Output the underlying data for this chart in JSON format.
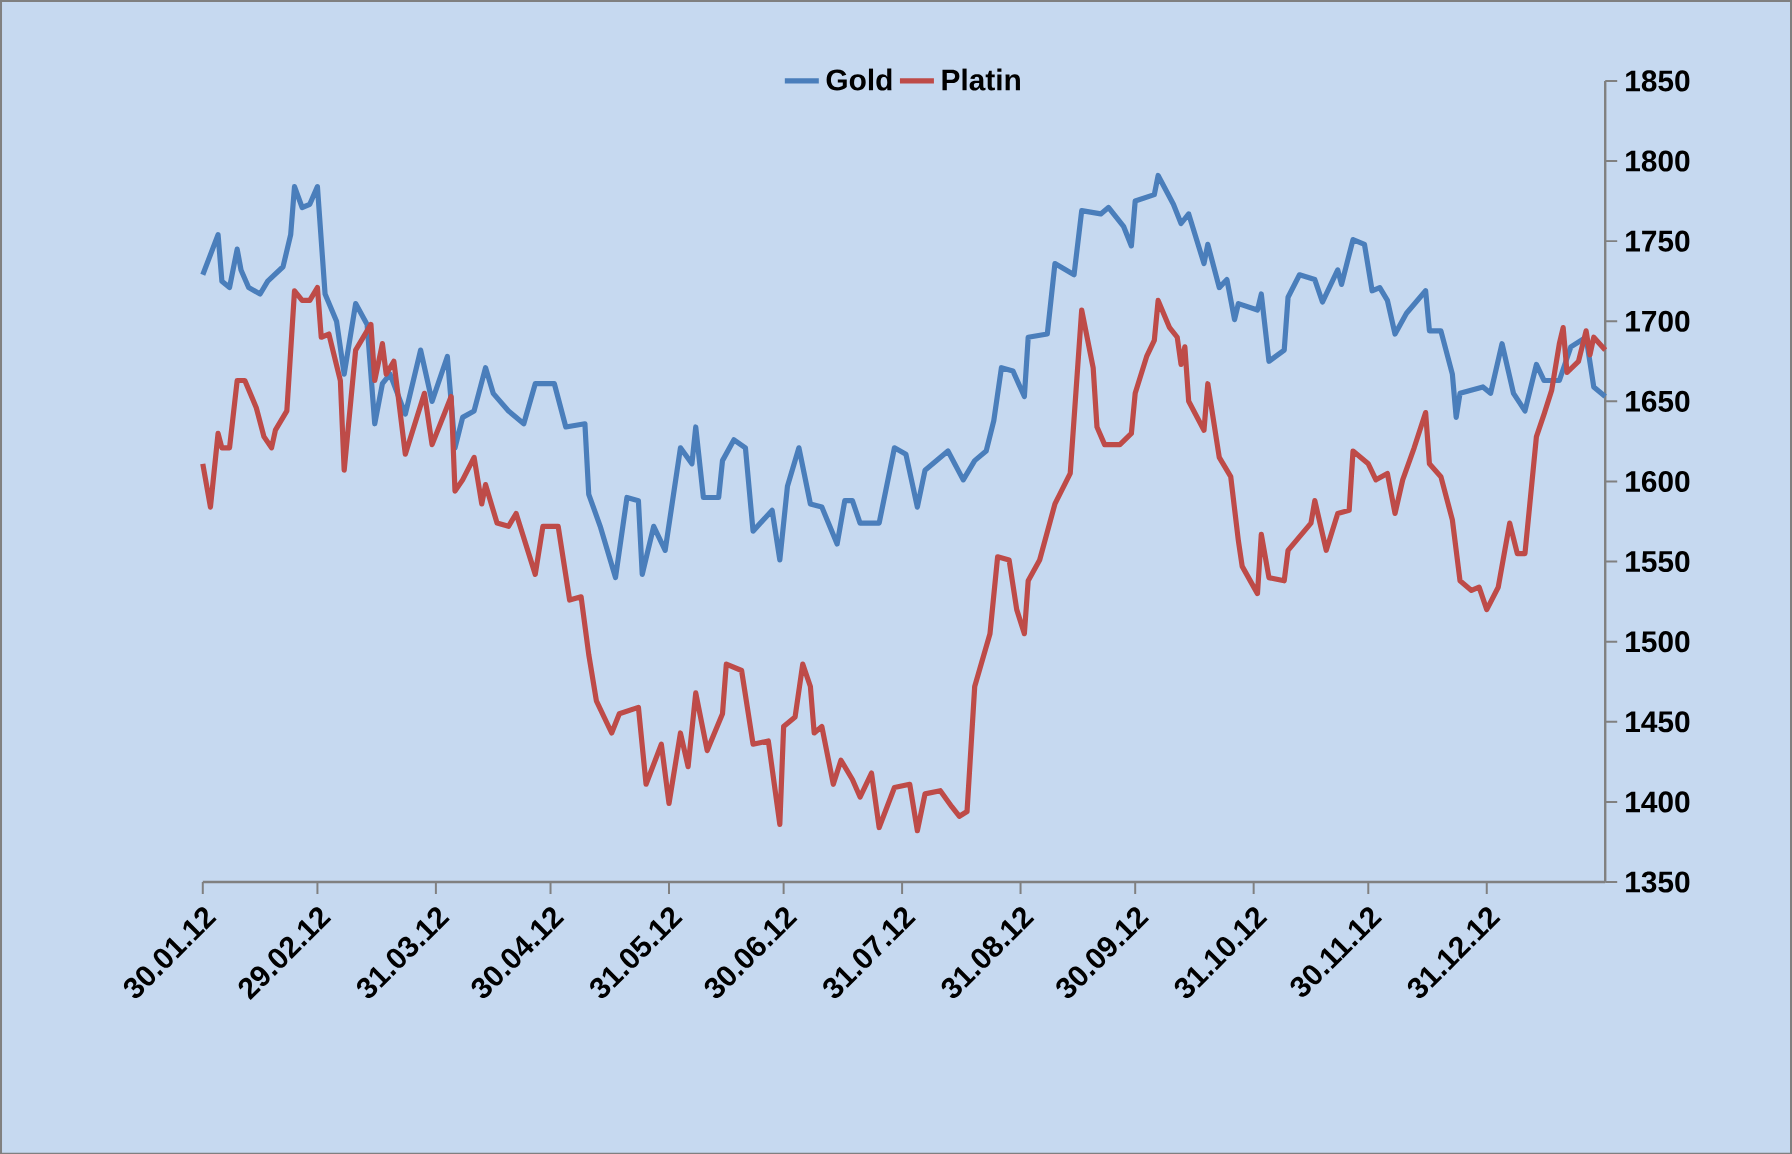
{
  "chart_data": {
    "type": "line",
    "xlim": [
      "2012-01-30",
      "2013-01-31"
    ],
    "ylim": [
      1350,
      1850
    ],
    "xticks": [
      {
        "value": "2012-01-30",
        "label": "30.01.12"
      },
      {
        "value": "2012-02-29",
        "label": "29.02.12"
      },
      {
        "value": "2012-03-31",
        "label": "31.03.12"
      },
      {
        "value": "2012-04-30",
        "label": "30.04.12"
      },
      {
        "value": "2012-05-31",
        "label": "31.05.12"
      },
      {
        "value": "2012-06-30",
        "label": "30.06.12"
      },
      {
        "value": "2012-07-31",
        "label": "31.07.12"
      },
      {
        "value": "2012-08-31",
        "label": "31.08.12"
      },
      {
        "value": "2012-09-30",
        "label": "30.09.12"
      },
      {
        "value": "2012-10-31",
        "label": "31.10.12"
      },
      {
        "value": "2012-11-30",
        "label": "30.11.12"
      },
      {
        "value": "2012-12-31",
        "label": "31.12.12"
      }
    ],
    "yticks": [
      1350,
      1400,
      1450,
      1500,
      1550,
      1600,
      1650,
      1700,
      1750,
      1800,
      1850
    ],
    "legend": "top",
    "grid": false,
    "series": [
      {
        "name": "Gold",
        "color": "#4a7ebb",
        "x": [
          "2012-01-30",
          "2012-02-03",
          "2012-02-04",
          "2012-02-06",
          "2012-02-08",
          "2012-02-09",
          "2012-02-11",
          "2012-02-14",
          "2012-02-16",
          "2012-02-20",
          "2012-02-22",
          "2012-02-23",
          "2012-02-25",
          "2012-02-27",
          "2012-02-29",
          "2012-03-02",
          "2012-03-05",
          "2012-03-07",
          "2012-03-10",
          "2012-03-13",
          "2012-03-15",
          "2012-03-17",
          "2012-03-19",
          "2012-03-23",
          "2012-03-27",
          "2012-03-30",
          "2012-04-03",
          "2012-04-05",
          "2012-04-07",
          "2012-04-10",
          "2012-04-13",
          "2012-04-15",
          "2012-04-19",
          "2012-04-23",
          "2012-04-26",
          "2012-05-01",
          "2012-05-04",
          "2012-05-09",
          "2012-05-10",
          "2012-05-13",
          "2012-05-17",
          "2012-05-20",
          "2012-05-23",
          "2012-05-24",
          "2012-05-27",
          "2012-05-30",
          "2012-06-03",
          "2012-06-06",
          "2012-06-07",
          "2012-06-09",
          "2012-06-13",
          "2012-06-14",
          "2012-06-17",
          "2012-06-20",
          "2012-06-22",
          "2012-06-27",
          "2012-06-29",
          "2012-07-01",
          "2012-07-04",
          "2012-07-07",
          "2012-07-10",
          "2012-07-14",
          "2012-07-16",
          "2012-07-18",
          "2012-07-20",
          "2012-07-25",
          "2012-07-29",
          "2012-08-01",
          "2012-08-04",
          "2012-08-06",
          "2012-08-12",
          "2012-08-16",
          "2012-08-19",
          "2012-08-22",
          "2012-08-24",
          "2012-08-26",
          "2012-08-29",
          "2012-09-01",
          "2012-09-02",
          "2012-09-07",
          "2012-09-09",
          "2012-09-14",
          "2012-09-16",
          "2012-09-21",
          "2012-09-23",
          "2012-09-27",
          "2012-09-29",
          "2012-09-30",
          "2012-10-05",
          "2012-10-06",
          "2012-10-10",
          "2012-10-12",
          "2012-10-14",
          "2012-10-18",
          "2012-10-19",
          "2012-10-22",
          "2012-10-24",
          "2012-10-26",
          "2012-10-27",
          "2012-11-01",
          "2012-11-02",
          "2012-11-04",
          "2012-11-08",
          "2012-11-09",
          "2012-11-12",
          "2012-11-16",
          "2012-11-18",
          "2012-11-22",
          "2012-11-23",
          "2012-11-26",
          "2012-11-29",
          "2012-12-01",
          "2012-12-03",
          "2012-12-05",
          "2012-12-07",
          "2012-12-10",
          "2012-12-15",
          "2012-12-16",
          "2012-12-19",
          "2012-12-22",
          "2012-12-23",
          "2012-12-24",
          "2012-12-30",
          "2013-01-01",
          "2013-01-04",
          "2013-01-07",
          "2013-01-10",
          "2013-01-13",
          "2013-01-15",
          "2013-01-19",
          "2013-01-22",
          "2013-01-26",
          "2013-01-28",
          "2013-01-31"
        ],
        "values": [
          1729,
          1754,
          1725,
          1721,
          1745,
          1732,
          1721,
          1717,
          1725,
          1734,
          1754,
          1784,
          1771,
          1773,
          1784,
          1717,
          1700,
          1667,
          1711,
          1698,
          1636,
          1661,
          1667,
          1642,
          1682,
          1650,
          1678,
          1621,
          1640,
          1644,
          1671,
          1655,
          1644,
          1636,
          1661,
          1661,
          1634,
          1636,
          1592,
          1572,
          1540,
          1590,
          1588,
          1542,
          1572,
          1557,
          1621,
          1611,
          1634,
          1590,
          1590,
          1613,
          1626,
          1621,
          1569,
          1582,
          1551,
          1597,
          1621,
          1586,
          1584,
          1561,
          1588,
          1588,
          1574,
          1574,
          1621,
          1617,
          1584,
          1607,
          1619,
          1601,
          1613,
          1619,
          1638,
          1671,
          1669,
          1653,
          1690,
          1692,
          1736,
          1729,
          1769,
          1767,
          1771,
          1759,
          1747,
          1775,
          1779,
          1791,
          1773,
          1761,
          1767,
          1736,
          1748,
          1721,
          1726,
          1701,
          1711,
          1707,
          1717,
          1675,
          1682,
          1715,
          1729,
          1726,
          1712,
          1732,
          1723,
          1751,
          1748,
          1719,
          1721,
          1713,
          1692,
          1705,
          1719,
          1694,
          1694,
          1667,
          1640,
          1655,
          1659,
          1655,
          1686,
          1655,
          1644,
          1673,
          1663,
          1663,
          1684,
          1690,
          1659,
          1653
        ]
      },
      {
        "name": "Platin",
        "color": "#be4b48",
        "x": [
          "2012-01-30",
          "2012-02-01",
          "2012-02-03",
          "2012-02-04",
          "2012-02-06",
          "2012-02-08",
          "2012-02-10",
          "2012-02-13",
          "2012-02-15",
          "2012-02-17",
          "2012-02-18",
          "2012-02-21",
          "2012-02-23",
          "2012-02-25",
          "2012-02-27",
          "2012-02-29",
          "2012-03-01",
          "2012-03-03",
          "2012-03-06",
          "2012-03-07",
          "2012-03-10",
          "2012-03-14",
          "2012-03-15",
          "2012-03-17",
          "2012-03-18",
          "2012-03-20",
          "2012-03-23",
          "2012-03-28",
          "2012-03-30",
          "2012-04-04",
          "2012-04-05",
          "2012-04-07",
          "2012-04-10",
          "2012-04-12",
          "2012-04-13",
          "2012-04-16",
          "2012-04-19",
          "2012-04-21",
          "2012-04-26",
          "2012-04-28",
          "2012-05-02",
          "2012-05-05",
          "2012-05-08",
          "2012-05-10",
          "2012-05-12",
          "2012-05-16",
          "2012-05-18",
          "2012-05-23",
          "2012-05-25",
          "2012-05-29",
          "2012-05-31",
          "2012-06-03",
          "2012-06-05",
          "2012-06-07",
          "2012-06-10",
          "2012-06-14",
          "2012-06-15",
          "2012-06-19",
          "2012-06-22",
          "2012-06-26",
          "2012-06-29",
          "2012-06-30",
          "2012-07-03",
          "2012-07-05",
          "2012-07-07",
          "2012-07-08",
          "2012-07-10",
          "2012-07-13",
          "2012-07-15",
          "2012-07-18",
          "2012-07-20",
          "2012-07-23",
          "2012-07-25",
          "2012-07-29",
          "2012-08-02",
          "2012-08-04",
          "2012-08-06",
          "2012-08-10",
          "2012-08-13",
          "2012-08-15",
          "2012-08-17",
          "2012-08-19",
          "2012-08-23",
          "2012-08-25",
          "2012-08-28",
          "2012-08-30",
          "2012-09-01",
          "2012-09-02",
          "2012-09-05",
          "2012-09-09",
          "2012-09-13",
          "2012-09-16",
          "2012-09-19",
          "2012-09-20",
          "2012-09-22",
          "2012-09-26",
          "2012-09-29",
          "2012-09-30",
          "2012-10-03",
          "2012-10-05",
          "2012-10-06",
          "2012-10-09",
          "2012-10-11",
          "2012-10-12",
          "2012-10-13",
          "2012-10-14",
          "2012-10-18",
          "2012-10-19",
          "2012-10-22",
          "2012-10-25",
          "2012-10-27",
          "2012-10-28",
          "2012-11-01",
          "2012-11-02",
          "2012-11-04",
          "2012-11-08",
          "2012-11-09",
          "2012-11-15",
          "2012-11-16",
          "2012-11-19",
          "2012-11-22",
          "2012-11-25",
          "2012-11-26",
          "2012-11-30",
          "2012-12-02",
          "2012-12-05",
          "2012-12-07",
          "2012-12-09",
          "2012-12-12",
          "2012-12-15",
          "2012-12-16",
          "2012-12-19",
          "2012-12-22",
          "2012-12-24",
          "2012-12-27",
          "2012-12-29",
          "2012-12-31",
          "2013-01-03",
          "2013-01-06",
          "2013-01-08",
          "2013-01-10",
          "2013-01-13",
          "2013-01-15",
          "2013-01-17",
          "2013-01-19",
          "2013-01-20",
          "2013-01-21",
          "2013-01-24",
          "2013-01-26",
          "2013-01-27",
          "2013-01-28",
          "2013-01-31"
        ],
        "values": [
          1611,
          1584,
          1630,
          1621,
          1621,
          1663,
          1663,
          1646,
          1628,
          1621,
          1632,
          1644,
          1719,
          1713,
          1713,
          1721,
          1690,
          1692,
          1663,
          1607,
          1682,
          1698,
          1663,
          1686,
          1667,
          1675,
          1617,
          1655,
          1623,
          1653,
          1594,
          1601,
          1615,
          1586,
          1598,
          1574,
          1572,
          1580,
          1542,
          1572,
          1572,
          1526,
          1528,
          1492,
          1463,
          1443,
          1455,
          1459,
          1411,
          1436,
          1399,
          1443,
          1422,
          1468,
          1432,
          1455,
          1486,
          1482,
          1436,
          1438,
          1386,
          1447,
          1453,
          1486,
          1472,
          1443,
          1447,
          1411,
          1426,
          1414,
          1403,
          1418,
          1384,
          1409,
          1411,
          1382,
          1405,
          1407,
          1397,
          1391,
          1394,
          1472,
          1505,
          1553,
          1551,
          1520,
          1505,
          1538,
          1551,
          1586,
          1605,
          1707,
          1671,
          1634,
          1623,
          1623,
          1630,
          1655,
          1678,
          1688,
          1713,
          1696,
          1690,
          1673,
          1684,
          1650,
          1632,
          1661,
          1615,
          1603,
          1563,
          1547,
          1530,
          1567,
          1540,
          1538,
          1557,
          1574,
          1588,
          1557,
          1580,
          1582,
          1619,
          1611,
          1601,
          1605,
          1580,
          1601,
          1621,
          1643,
          1611,
          1603,
          1576,
          1538,
          1532,
          1534,
          1520,
          1534,
          1574,
          1555,
          1555,
          1628,
          1642,
          1657,
          1686,
          1696,
          1668,
          1675,
          1694,
          1679,
          1690,
          1682
        ]
      }
    ]
  }
}
